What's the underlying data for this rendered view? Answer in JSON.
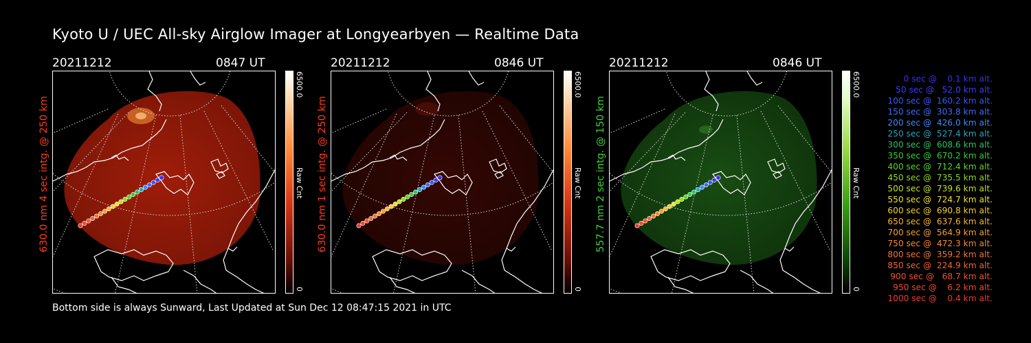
{
  "title": "Kyoto U / UEC All-sky Airglow Imager at Longyearbyen — Realtime Data",
  "footer": "Bottom side is always Sunward, Last Updated at Sun Dec 12 08:47:15 2021 in UTC",
  "panels": [
    {
      "date": "20211212",
      "time": "0847 UT",
      "label": "630.0 nm 4 sec intg. @ 250 km",
      "label_color": "#ff3b1f",
      "colorbar_max": "6500.0",
      "colorbar_min": "0",
      "colorbar_label": "Raw Cnt",
      "tint": "red"
    },
    {
      "date": "20211212",
      "time": "0846 UT",
      "label": "630.0 nm 1 sec intg. @ 250 km",
      "label_color": "#ff3b1f",
      "colorbar_max": "6500.0",
      "colorbar_min": "0",
      "colorbar_label": "Raw Cnt",
      "tint": "darkred"
    },
    {
      "date": "20211212",
      "time": "0846 UT",
      "label": "557.7 nm 2 sec intg. @ 150 km",
      "label_color": "#3fd13f",
      "colorbar_max": "6500.0",
      "colorbar_min": "0",
      "colorbar_label": "Raw Cnt",
      "tint": "green"
    }
  ],
  "legend": [
    {
      "text": "   0 sec @    0.1 km alt.",
      "color": "#3b2cff"
    },
    {
      "text": "  50 sec @   52.0 km alt.",
      "color": "#3b3cff"
    },
    {
      "text": " 100 sec @  160.2 km alt.",
      "color": "#3a55ff"
    },
    {
      "text": " 150 sec @  303.8 km alt.",
      "color": "#3a6dff"
    },
    {
      "text": " 200 sec @  426.0 km alt.",
      "color": "#3a8aff"
    },
    {
      "text": " 250 sec @  527.4 km alt.",
      "color": "#2aa3c0"
    },
    {
      "text": " 300 sec @  608.6 km alt.",
      "color": "#2cc26a"
    },
    {
      "text": " 350 sec @  670.2 km alt.",
      "color": "#33d035"
    },
    {
      "text": " 400 sec @  712.4 km alt.",
      "color": "#5ad627"
    },
    {
      "text": " 450 sec @  735.5 km alt.",
      "color": "#8ddb24"
    },
    {
      "text": " 500 sec @  739.6 km alt.",
      "color": "#c3e023"
    },
    {
      "text": " 550 sec @  724.7 km alt.",
      "color": "#eee326"
    },
    {
      "text": " 600 sec @  690.8 km alt.",
      "color": "#f7cf28"
    },
    {
      "text": " 650 sec @  637.6 km alt.",
      "color": "#f8b72a"
    },
    {
      "text": " 700 sec @  564.9 km alt.",
      "color": "#f8a02b"
    },
    {
      "text": " 750 sec @  472.3 km alt.",
      "color": "#f78a2c"
    },
    {
      "text": " 800 sec @  359.2 km alt.",
      "color": "#f6752c"
    },
    {
      "text": " 850 sec @  224.9 km alt.",
      "color": "#f5642c"
    },
    {
      "text": " 900 sec @   68.7 km alt.",
      "color": "#f4542c"
    },
    {
      "text": " 950 sec @    6.2 km alt.",
      "color": "#f2482c"
    },
    {
      "text": "1000 sec @    0.4 km alt.",
      "color": "#f03a2c"
    }
  ]
}
